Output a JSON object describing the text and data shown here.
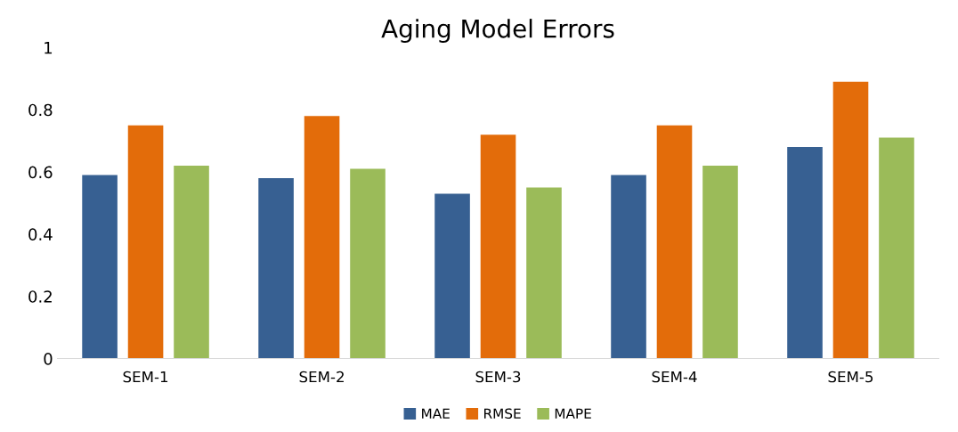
{
  "chart_data": {
    "type": "bar",
    "title": "Aging Model Errors",
    "categories": [
      "SEM-1",
      "SEM-2",
      "SEM-3",
      "SEM-4",
      "SEM-5"
    ],
    "series": [
      {
        "name": "MAE",
        "color": "#376092",
        "values": [
          0.59,
          0.58,
          0.53,
          0.59,
          0.68
        ]
      },
      {
        "name": "RMSE",
        "color": "#e36c0a",
        "values": [
          0.75,
          0.78,
          0.72,
          0.75,
          0.89
        ]
      },
      {
        "name": "MAPE",
        "color": "#9bbb59",
        "values": [
          0.62,
          0.61,
          0.55,
          0.62,
          0.71
        ]
      }
    ],
    "ylim": [
      0,
      1
    ],
    "yticks": [
      0,
      0.2,
      0.4,
      0.6,
      0.8,
      1
    ],
    "grid": false,
    "legend": "bottom"
  }
}
